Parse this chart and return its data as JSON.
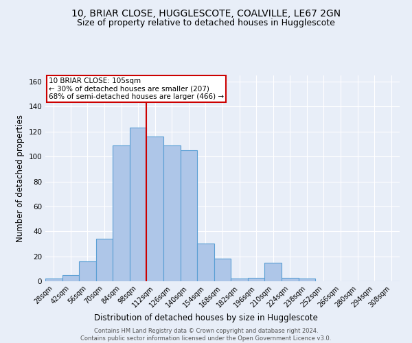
{
  "title": "10, BRIAR CLOSE, HUGGLESCOTE, COALVILLE, LE67 2GN",
  "subtitle": "Size of property relative to detached houses in Hugglescote",
  "xlabel": "Distribution of detached houses by size in Hugglescote",
  "ylabel": "Number of detached properties",
  "footer_line1": "Contains HM Land Registry data © Crown copyright and database right 2024.",
  "footer_line2": "Contains public sector information licensed under the Open Government Licence v3.0.",
  "bin_labels": [
    "28sqm",
    "42sqm",
    "56sqm",
    "70sqm",
    "84sqm",
    "98sqm",
    "112sqm",
    "126sqm",
    "140sqm",
    "154sqm",
    "168sqm",
    "182sqm",
    "196sqm",
    "210sqm",
    "224sqm",
    "238sqm",
    "252sqm",
    "266sqm",
    "280sqm",
    "294sqm",
    "308sqm"
  ],
  "bar_values": [
    2,
    5,
    16,
    34,
    109,
    123,
    116,
    109,
    105,
    30,
    18,
    2,
    3,
    15,
    3,
    2,
    0,
    0,
    0,
    0,
    0
  ],
  "bar_color": "#aec6e8",
  "bar_edge_color": "#5a9fd4",
  "property_label": "10 BRIAR CLOSE: 105sqm",
  "annotation_line1": "← 30% of detached houses are smaller (207)",
  "annotation_line2": "68% of semi-detached houses are larger (466) →",
  "vline_color": "#cc0000",
  "vline_bin_index": 5.5,
  "annotation_box_color": "#ffffff",
  "annotation_box_edge": "#cc0000",
  "ylim": [
    0,
    165
  ],
  "yticks": [
    0,
    20,
    40,
    60,
    80,
    100,
    120,
    140,
    160
  ],
  "bg_color": "#e8eef8",
  "plot_bg_color": "#e8eef8",
  "title_fontsize": 10,
  "subtitle_fontsize": 9,
  "xlabel_fontsize": 8.5,
  "ylabel_fontsize": 8.5,
  "annotation_fontsize": 7.5,
  "footer_fontsize": 6.0,
  "tick_fontsize": 7.0,
  "ytick_fontsize": 7.5
}
